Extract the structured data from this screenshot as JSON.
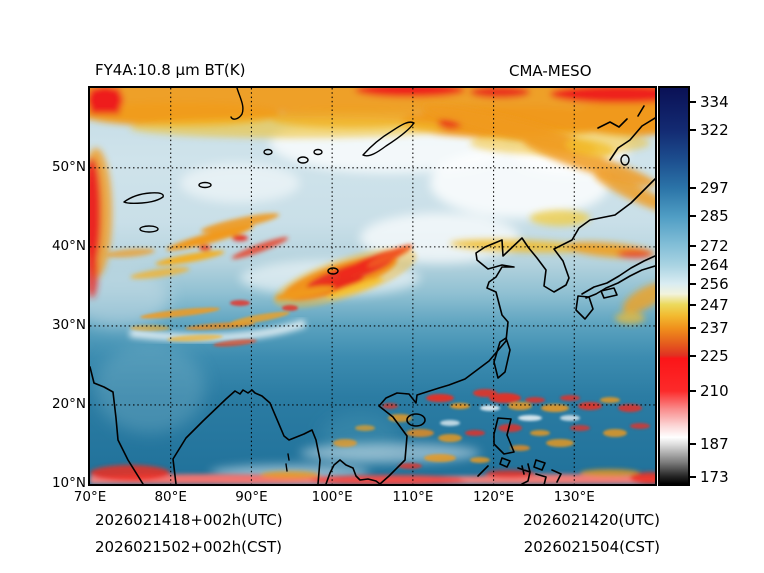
{
  "figure": {
    "title_left": "FY4A:10.8 μm BT(K)",
    "title_right": "CMA-MESO",
    "footer": {
      "left_utc": "2026021418+002h(UTC)",
      "left_cst": "2026021502+002h(CST)",
      "right_utc": "2026021420(UTC)",
      "right_cst": "2026021504(CST)"
    }
  },
  "chart_data": {
    "type": "heatmap",
    "title": "FY4A:10.8 μm BT(K)",
    "model": "CMA-MESO",
    "quantity": "10.8 μm brightness temperature",
    "units": "K",
    "valid_time": "2026021420(UTC) / 2026021504(CST)",
    "init_plus_lead": "2026021418+002h(UTC) / 2026021502+002h(CST)",
    "grid_style": "dotted",
    "x_axis": {
      "range_deg": [
        70,
        140
      ],
      "ticks_deg": [
        70,
        80,
        90,
        100,
        110,
        120,
        130
      ],
      "tick_labels": [
        "70°E",
        "80°E",
        "90°E",
        "100°E",
        "110°E",
        "120°E",
        "130°E"
      ]
    },
    "y_axis": {
      "range_deg": [
        10,
        60.1
      ],
      "ticks_deg": [
        10,
        20,
        30,
        40,
        50
      ],
      "tick_labels": [
        "10°N",
        "20°N",
        "30°N",
        "40°N",
        "50°N"
      ]
    },
    "colorbar": {
      "units": "K",
      "value_range": [
        170,
        340
      ],
      "tick_values": [
        334,
        322,
        297,
        285,
        272,
        264,
        256,
        247,
        237,
        225,
        210,
        187,
        173
      ],
      "gradient_stops": [
        [
          0.0,
          "#0a1156"
        ],
        [
          0.106,
          "#132a72"
        ],
        [
          0.18,
          "#1c4d8e"
        ],
        [
          0.253,
          "#2b74a8"
        ],
        [
          0.324,
          "#4f9dc4"
        ],
        [
          0.4,
          "#85c0d8"
        ],
        [
          0.447,
          "#a9d3e2"
        ],
        [
          0.494,
          "#d9ecf2"
        ],
        [
          0.52,
          "#f2f3dd"
        ],
        [
          0.547,
          "#ecd95b"
        ],
        [
          0.575,
          "#f2ba30"
        ],
        [
          0.606,
          "#f0911c"
        ],
        [
          0.645,
          "#e55d1d"
        ],
        [
          0.675,
          "#e03222"
        ],
        [
          0.683,
          "#fb1518"
        ],
        [
          0.765,
          "#fc2a2a"
        ],
        [
          0.81,
          "#f98a8a"
        ],
        [
          0.855,
          "#fcd9d9"
        ],
        [
          0.882,
          "#ffffff"
        ],
        [
          0.9,
          "#dedede"
        ],
        [
          0.945,
          "#7d7d7d"
        ],
        [
          0.98,
          "#262626"
        ],
        [
          1.0,
          "#000000"
        ]
      ]
    },
    "cloud_regions": [
      {
        "area": "northern edge band 55-60°N, 70-140°E",
        "bt_K": "≈210-245",
        "appearance": "orange/red cold cloud band, reddest near 72°E, 108-115°E and 135-140°E"
      },
      {
        "area": "western edge 44-52°N near 70°E",
        "bt_K": "≈210-225",
        "appearance": "red strip"
      },
      {
        "area": "Tianshan/Tarim 38-46°N, 74-96°E",
        "bt_K": "≈225-245",
        "appearance": "orange streaks with small red cores"
      },
      {
        "area": "east of Tibetan Plateau 31-37°N, 93-109°E",
        "bt_K": "≈210-237",
        "appearance": "dense red/orange streak cluster"
      },
      {
        "area": "southern Tibetan Plateau 27-33°N, 76-100°E",
        "bt_K": "≈230-247",
        "appearance": "thin orange streaks"
      },
      {
        "area": "northeast diagonal 45-58°N, 110-140°E",
        "bt_K": "≈237-252",
        "appearance": "orange/gold bands mixed with white cloud"
      },
      {
        "area": "tropics 10-20°N, 100-140°E",
        "bt_K": "≈210-245",
        "appearance": "scattered convective cells (red/orange/white specks)"
      },
      {
        "area": "southern edge ≈10°N",
        "bt_K": "≈195-215",
        "appearance": "pink/red band along bottom"
      },
      {
        "area": "mid-latitude background 33-58°N",
        "bt_K": "≈255-270",
        "appearance": "pale blue clear sky"
      },
      {
        "area": "southern background 10-33°N",
        "bt_K": "≈280-297",
        "appearance": "teal blue warm surface/ocean"
      }
    ]
  }
}
